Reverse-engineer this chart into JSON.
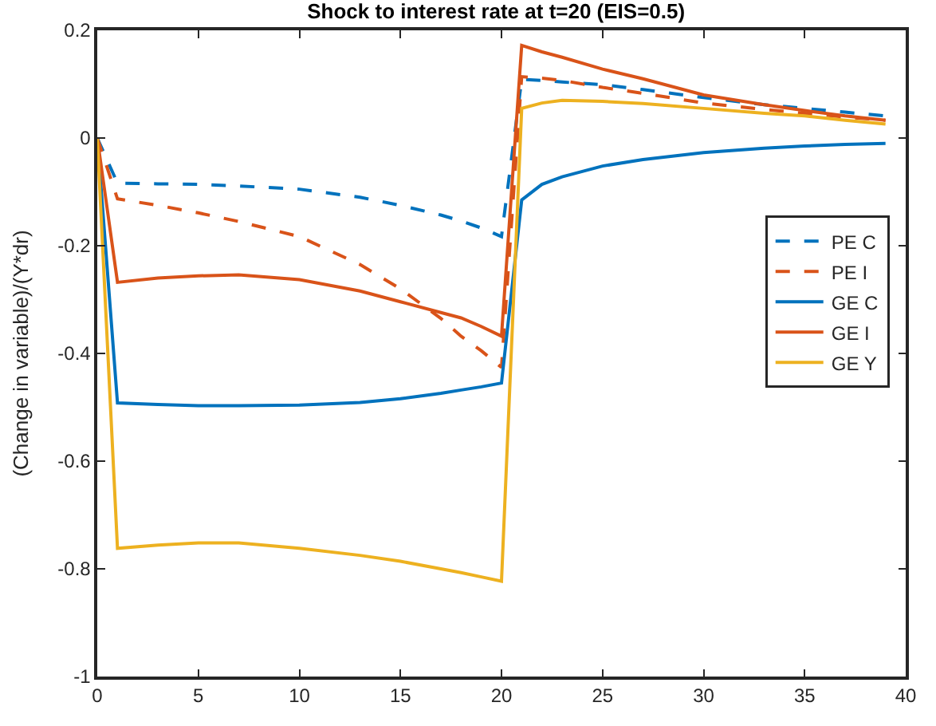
{
  "chart_data": {
    "type": "line",
    "title": "Shock to interest rate at t=20 (EIS=0.5)",
    "ylabel": "(Change in variable)/(Y*dr)",
    "x": [
      0,
      1,
      3,
      5,
      7,
      10,
      13,
      15,
      17,
      18,
      19,
      20,
      21,
      22,
      23,
      25,
      27,
      30,
      33,
      35,
      37,
      39
    ],
    "xlim": [
      0,
      40
    ],
    "xticks": [
      0,
      5,
      10,
      15,
      20,
      25,
      30,
      35,
      40
    ],
    "ylim": [
      -1,
      0.2
    ],
    "yticks": [
      -1,
      -0.8,
      -0.6,
      -0.4,
      -0.2,
      0,
      0.2
    ],
    "legend": "right",
    "marker": "none",
    "series": [
      {
        "name": "PE C",
        "color": "#0072bd",
        "line_style": "dashed",
        "values": [
          0,
          -0.084,
          -0.085,
          -0.086,
          -0.089,
          -0.095,
          -0.11,
          -0.125,
          -0.143,
          -0.154,
          -0.167,
          -0.183,
          0.109,
          0.107,
          0.104,
          0.099,
          0.09,
          0.075,
          0.062,
          0.055,
          0.048,
          0.041
        ]
      },
      {
        "name": "PE I",
        "color": "#d95319",
        "line_style": "dashed",
        "values": [
          0,
          -0.113,
          -0.125,
          -0.139,
          -0.155,
          -0.183,
          -0.235,
          -0.28,
          -0.335,
          -0.368,
          -0.395,
          -0.426,
          0.114,
          0.111,
          0.107,
          0.094,
          0.083,
          0.065,
          0.053,
          0.046,
          0.039,
          0.033
        ]
      },
      {
        "name": "GE C",
        "color": "#0072bd",
        "line_style": "solid",
        "values": [
          0,
          -0.492,
          -0.495,
          -0.497,
          -0.497,
          -0.496,
          -0.491,
          -0.484,
          -0.474,
          -0.468,
          -0.462,
          -0.455,
          -0.115,
          -0.086,
          -0.072,
          -0.052,
          -0.04,
          -0.027,
          -0.019,
          -0.015,
          -0.012,
          -0.01
        ]
      },
      {
        "name": "GE I",
        "color": "#d95319",
        "line_style": "solid",
        "values": [
          0,
          -0.268,
          -0.26,
          -0.256,
          -0.254,
          -0.263,
          -0.284,
          -0.304,
          -0.324,
          -0.334,
          -0.35,
          -0.368,
          0.172,
          0.16,
          0.15,
          0.128,
          0.11,
          0.08,
          0.062,
          0.051,
          0.041,
          0.033
        ]
      },
      {
        "name": "GE Y",
        "color": "#edb120",
        "line_style": "solid",
        "values": [
          0,
          -0.762,
          -0.756,
          -0.752,
          -0.752,
          -0.762,
          -0.775,
          -0.786,
          -0.8,
          -0.807,
          -0.815,
          -0.823,
          0.055,
          0.065,
          0.07,
          0.068,
          0.064,
          0.055,
          0.046,
          0.041,
          0.033,
          0.026
        ]
      }
    ]
  }
}
